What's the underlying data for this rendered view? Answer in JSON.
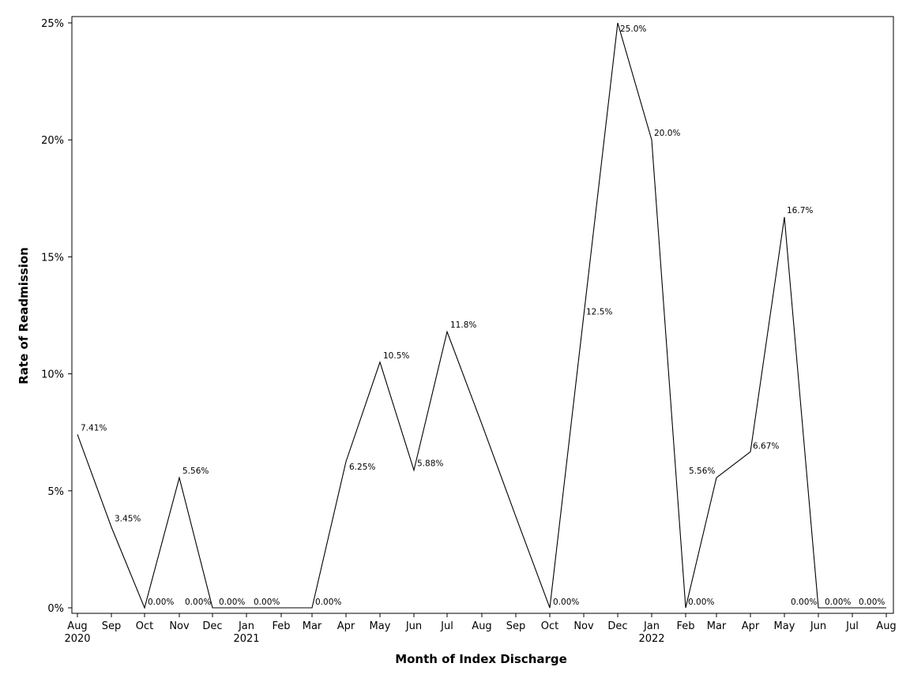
{
  "chart_data": {
    "type": "line",
    "title": "",
    "xlabel": "Month of Index Discharge",
    "ylabel": "Rate of Readmission",
    "ylim": [
      0,
      25
    ],
    "yticks": [
      "0%",
      "5%",
      "10%",
      "15%",
      "20%",
      "25%"
    ],
    "grid": false,
    "legend": "none",
    "line_color": "#000000",
    "categories": [
      "Aug",
      "Sep",
      "Oct",
      "Nov",
      "Dec",
      "Jan",
      "Feb",
      "Mar",
      "Apr",
      "May",
      "Jun",
      "Jul",
      "Aug",
      "Sep",
      "Oct",
      "Nov",
      "Dec",
      "Jan",
      "Feb",
      "Mar",
      "Apr",
      "May",
      "Jun",
      "Jul",
      "Aug"
    ],
    "year_labels": [
      "2020",
      "",
      "",
      "",
      "",
      "2021",
      "",
      "",
      "",
      "",
      "",
      "",
      "",
      "",
      "",
      "",
      "",
      "2022",
      "",
      "",
      "",
      "",
      "",
      "",
      ""
    ],
    "series": [
      {
        "values": [
          7.41,
          3.45,
          0,
          5.56,
          0,
          0,
          0,
          0,
          6.25,
          10.5,
          5.88,
          11.8,
          7.85,
          3.9,
          0,
          12.5,
          25.0,
          20.0,
          0,
          5.56,
          6.67,
          16.7,
          0,
          0,
          0
        ],
        "labels": [
          "7.41%",
          "3.45%",
          "0.00%",
          "5.56%",
          "0.00%",
          "0.00%",
          "0.00%",
          "0.00%",
          "6.25%",
          "10.5%",
          "5.88%",
          "11.8%",
          "",
          "",
          "0.00%",
          "12.5%",
          "25.0%",
          "20.0%",
          "0.00%",
          "5.56%",
          "6.67%",
          "16.7%",
          "0.00%",
          "0.00%",
          "0.00%"
        ]
      }
    ]
  }
}
